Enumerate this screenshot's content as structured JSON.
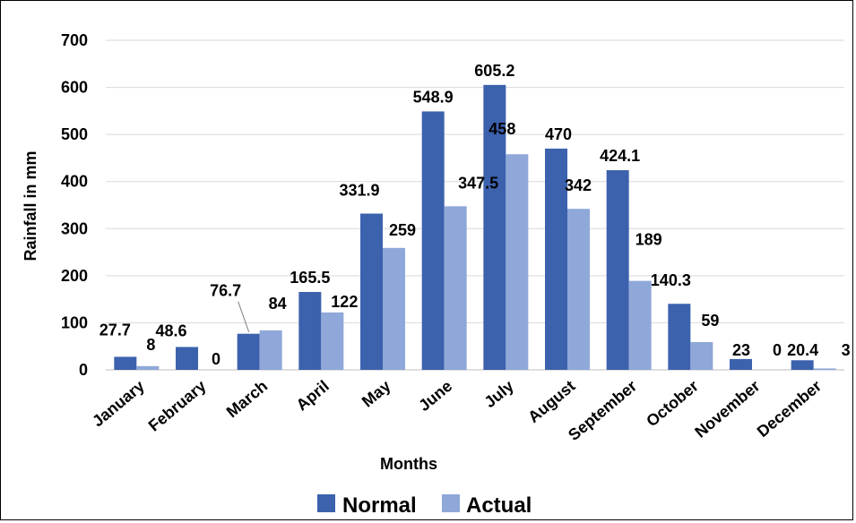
{
  "chart_data": {
    "type": "bar",
    "title": "",
    "xlabel": "Months",
    "ylabel": "Rainfall in mm",
    "ylim": [
      0,
      700
    ],
    "yticks": [
      0,
      100,
      200,
      300,
      400,
      500,
      600,
      700
    ],
    "grid": true,
    "legend_position": "bottom",
    "categories": [
      "January",
      "February",
      "March",
      "April",
      "May",
      "June",
      "July",
      "August",
      "September",
      "October",
      "November",
      "December"
    ],
    "series": [
      {
        "name": "Normal",
        "color": "#3C62AD",
        "values": [
          27.7,
          48.6,
          76.7,
          165.5,
          331.9,
          548.9,
          605.2,
          470,
          424.1,
          140.3,
          23,
          20.4
        ],
        "labels": [
          "27.7",
          "48.6",
          "76.7",
          "165.5",
          "331.9",
          "548.9",
          "605.2",
          "470",
          "424.1",
          "140.3",
          "23",
          "20.4"
        ]
      },
      {
        "name": "Actual",
        "color": "#8FA8D9",
        "values": [
          8,
          0,
          84,
          122,
          259,
          347.5,
          458,
          342,
          189,
          59,
          0,
          3
        ],
        "labels": [
          "8",
          "0",
          "84",
          "122",
          "259",
          "347.5",
          "458",
          "342",
          "189",
          "59",
          "0",
          "3"
        ]
      }
    ]
  }
}
